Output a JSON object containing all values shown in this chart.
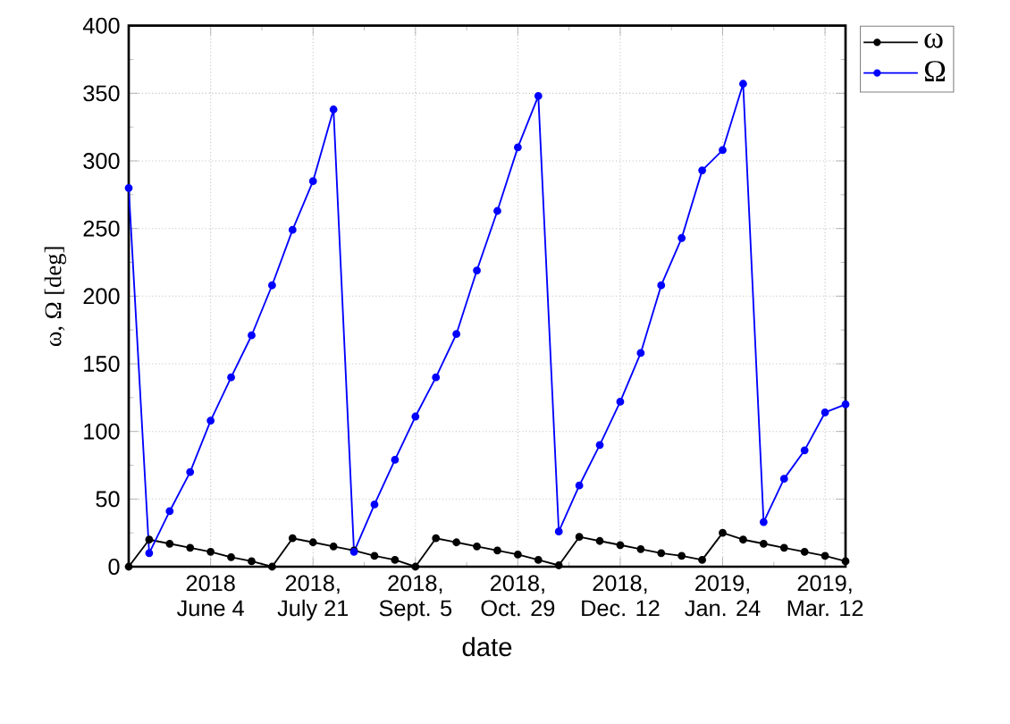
{
  "chart_data": {
    "type": "line",
    "xlabel": "date",
    "ylabel": "ω, Ω [deg]",
    "categories": [
      null,
      null,
      null,
      null,
      "2018 June 4",
      null,
      null,
      null,
      null,
      "2018, July 21",
      null,
      null,
      null,
      null,
      "2018, Sept. 5",
      null,
      null,
      null,
      null,
      "2018, Oct. 29",
      null,
      null,
      null,
      null,
      "2018, Dec. 12",
      null,
      null,
      null,
      null,
      "2019, Jan. 24",
      null,
      null,
      null,
      null,
      "2019, Mar. 12",
      null
    ],
    "series": [
      {
        "name": "ω",
        "color": "#000000",
        "values": [
          0,
          20,
          17,
          14,
          11,
          7,
          4,
          0,
          21,
          18,
          15,
          12,
          8,
          5,
          0,
          21,
          18,
          15,
          12,
          9,
          5,
          1,
          22,
          19,
          16,
          13,
          10,
          8,
          5,
          25,
          20,
          17,
          14,
          11,
          8,
          4
        ]
      },
      {
        "name": "Ω",
        "color": "#0000ff",
        "values": [
          280,
          10,
          41,
          70,
          108,
          140,
          171,
          208,
          249,
          285,
          338,
          11,
          46,
          79,
          111,
          140,
          172,
          219,
          263,
          310,
          348,
          26,
          60,
          90,
          122,
          158,
          208,
          243,
          293,
          308,
          357,
          33,
          65,
          86,
          114,
          120
        ]
      }
    ],
    "ylim": [
      0,
      400
    ],
    "yticks": [
      0,
      50,
      100,
      150,
      200,
      250,
      300,
      350,
      400
    ],
    "grid": true,
    "legend": "top right",
    "marker": "circle",
    "line_style": "solid"
  }
}
